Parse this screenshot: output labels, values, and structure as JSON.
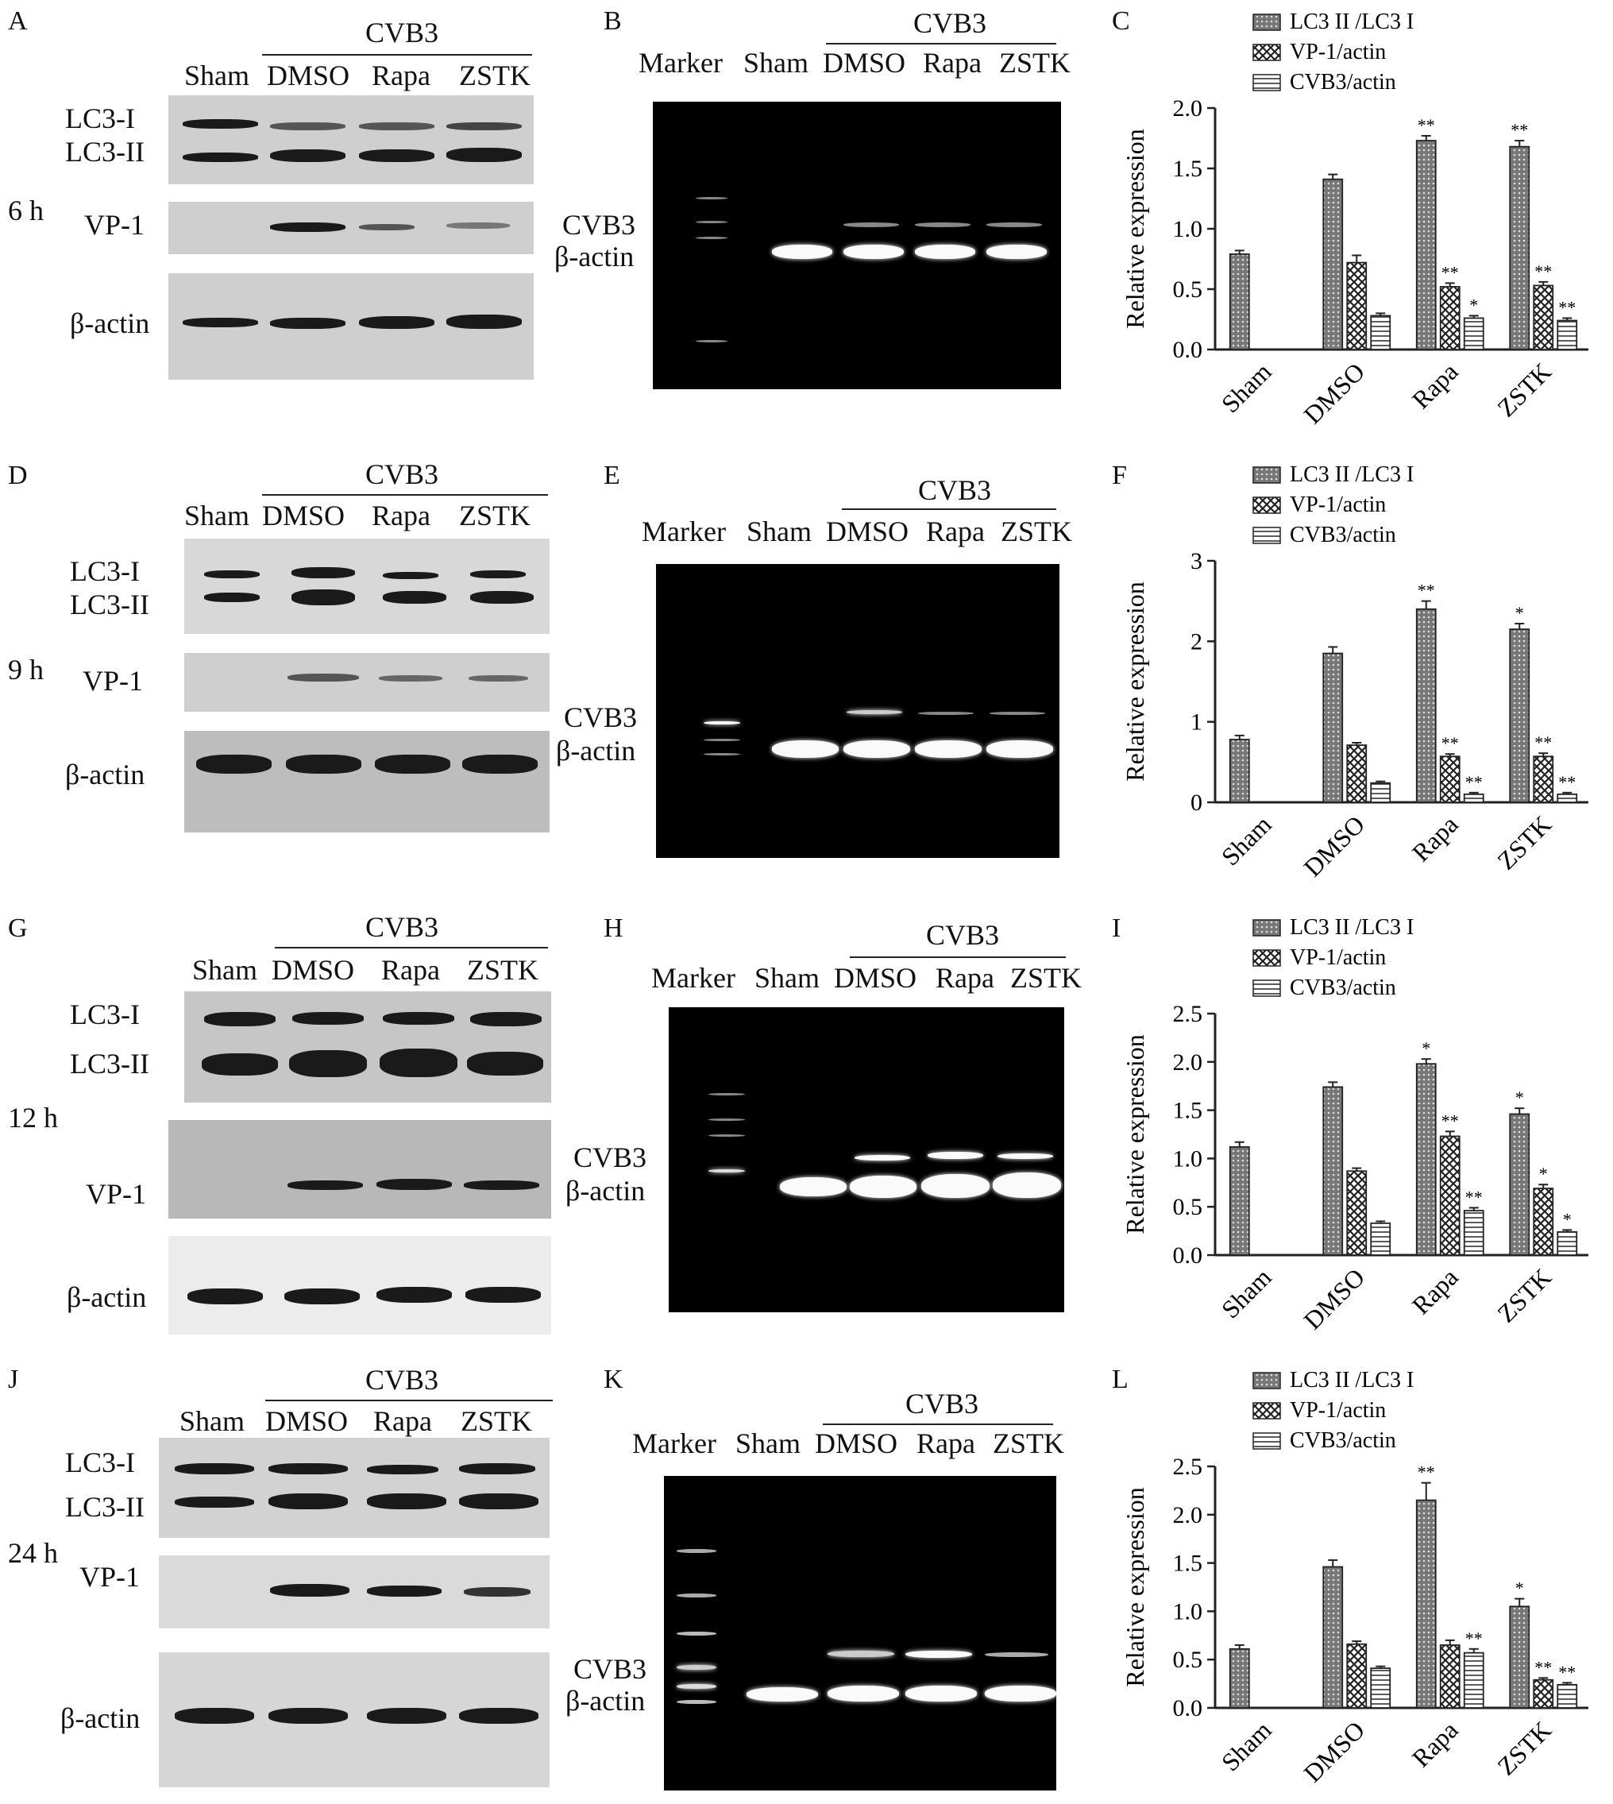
{
  "rows": [
    {
      "time": "6 h",
      "blot": {
        "letter": "A",
        "group": "CVB3",
        "lanes": [
          "Sham",
          "DMSO",
          "Rapa",
          "ZSTK"
        ],
        "rows": [
          "LC3-I",
          "LC3-II",
          "VP-1",
          "β-actin"
        ]
      },
      "gel": {
        "letter": "B",
        "group": "CVB3",
        "lanes": [
          "Marker",
          "Sham",
          "DMSO",
          "Rapa",
          "ZSTK"
        ],
        "bands": [
          "CVB3",
          "β-actin"
        ]
      }
    },
    {
      "time": "9 h",
      "blot": {
        "letter": "D",
        "group": "CVB3",
        "lanes": [
          "Sham",
          "DMSO",
          "Rapa",
          "ZSTK"
        ],
        "rows": [
          "LC3-I",
          "LC3-II",
          "VP-1",
          "β-actin"
        ]
      },
      "gel": {
        "letter": "E",
        "group": "CVB3",
        "lanes": [
          "Marker",
          "Sham",
          "DMSO",
          "Rapa",
          "ZSTK"
        ],
        "bands": [
          "CVB3",
          "β-actin"
        ]
      }
    },
    {
      "time": "12 h",
      "blot": {
        "letter": "G",
        "group": "CVB3",
        "lanes": [
          "Sham",
          "DMSO",
          "Rapa",
          "ZSTK"
        ],
        "rows": [
          "LC3-I",
          "LC3-II",
          "VP-1",
          "β-actin"
        ]
      },
      "gel": {
        "letter": "H",
        "group": "CVB3",
        "lanes": [
          "Marker",
          "Sham",
          "DMSO",
          "Rapa",
          "ZSTK"
        ],
        "bands": [
          "CVB3",
          "β-actin"
        ]
      }
    },
    {
      "time": "24 h",
      "blot": {
        "letter": "J",
        "group": "CVB3",
        "lanes": [
          "Sham",
          "DMSO",
          "Rapa",
          "ZSTK"
        ],
        "rows": [
          "LC3-I",
          "LC3-II",
          "VP-1",
          "β-actin"
        ]
      },
      "gel": {
        "letter": "K",
        "group": "CVB3",
        "lanes": [
          "Marker",
          "Sham",
          "DMSO",
          "Rapa",
          "ZSTK"
        ],
        "bands": [
          "CVB3",
          "β-actin"
        ]
      }
    }
  ],
  "chart_data": [
    {
      "panel": "C",
      "type": "bar",
      "categories": [
        "Sham",
        "DMSO",
        "Rapa",
        "ZSTK"
      ],
      "ylabel": "Relative expression",
      "ylim": [
        0,
        2.0
      ],
      "yticks": [
        "0.0",
        "0.5",
        "1.0",
        "1.5",
        "2.0"
      ],
      "series": [
        {
          "name": "LC3 II  /LC3 I",
          "values": [
            0.79,
            1.41,
            1.73,
            1.68
          ],
          "errors": [
            0.03,
            0.04,
            0.04,
            0.05
          ],
          "marks": [
            "",
            "",
            "**",
            "**"
          ]
        },
        {
          "name": "VP-1/actin",
          "values": [
            0,
            0.72,
            0.52,
            0.53
          ],
          "errors": [
            0,
            0.06,
            0.03,
            0.03
          ],
          "marks": [
            "",
            "",
            "**",
            "**"
          ]
        },
        {
          "name": "CVB3/actin",
          "values": [
            0,
            0.28,
            0.26,
            0.24
          ],
          "errors": [
            0,
            0.02,
            0.02,
            0.02
          ],
          "marks": [
            "",
            "",
            "*",
            "**"
          ]
        }
      ]
    },
    {
      "panel": "F",
      "type": "bar",
      "categories": [
        "Sham",
        "DMSO",
        "Rapa",
        "ZSTK"
      ],
      "ylabel": "Relative expression",
      "ylim": [
        0,
        3
      ],
      "yticks": [
        "0",
        "1",
        "2",
        "3"
      ],
      "series": [
        {
          "name": "LC3 II  /LC3 I",
          "values": [
            0.78,
            1.85,
            2.4,
            2.15
          ],
          "errors": [
            0.05,
            0.08,
            0.1,
            0.07
          ],
          "marks": [
            "",
            "",
            "**",
            "*"
          ]
        },
        {
          "name": "VP-1/actin",
          "values": [
            0,
            0.71,
            0.57,
            0.57
          ],
          "errors": [
            0,
            0.03,
            0.03,
            0.04
          ],
          "marks": [
            "",
            "",
            "**",
            "**"
          ]
        },
        {
          "name": "CVB3/actin",
          "values": [
            0,
            0.24,
            0.1,
            0.1
          ],
          "errors": [
            0,
            0.02,
            0.02,
            0.02
          ],
          "marks": [
            "",
            "",
            "**",
            "**"
          ]
        }
      ]
    },
    {
      "panel": "I",
      "type": "bar",
      "categories": [
        "Sham",
        "DMSO",
        "Rapa",
        "ZSTK"
      ],
      "ylabel": "Relative expression",
      "ylim": [
        0,
        2.5
      ],
      "yticks": [
        "0.0",
        "0.5",
        "1.0",
        "1.5",
        "2.0",
        "2.5"
      ],
      "series": [
        {
          "name": "LC3 II  /LC3 I",
          "values": [
            1.12,
            1.74,
            1.98,
            1.46
          ],
          "errors": [
            0.05,
            0.05,
            0.05,
            0.06
          ],
          "marks": [
            "",
            "",
            "*",
            "*"
          ]
        },
        {
          "name": "VP-1/actin",
          "values": [
            0,
            0.87,
            1.23,
            0.69
          ],
          "errors": [
            0,
            0.03,
            0.05,
            0.04
          ],
          "marks": [
            "",
            "",
            "**",
            "*"
          ]
        },
        {
          "name": "CVB3/actin",
          "values": [
            0,
            0.33,
            0.46,
            0.24
          ],
          "errors": [
            0,
            0.02,
            0.03,
            0.02
          ],
          "marks": [
            "",
            "",
            "**",
            "*"
          ]
        }
      ]
    },
    {
      "panel": "L",
      "type": "bar",
      "categories": [
        "Sham",
        "DMSO",
        "Rapa",
        "ZSTK"
      ],
      "ylabel": "Relative expression",
      "ylim": [
        0,
        2.5
      ],
      "yticks": [
        "0.0",
        "0.5",
        "1.0",
        "1.5",
        "2.0",
        "2.5"
      ],
      "series": [
        {
          "name": "LC3 II  /LC3 I",
          "values": [
            0.61,
            1.46,
            2.15,
            1.05
          ],
          "errors": [
            0.04,
            0.07,
            0.18,
            0.08
          ],
          "marks": [
            "",
            "",
            "**",
            "*"
          ]
        },
        {
          "name": "VP-1/actin",
          "values": [
            0,
            0.66,
            0.65,
            0.29
          ],
          "errors": [
            0,
            0.03,
            0.05,
            0.02
          ],
          "marks": [
            "",
            "",
            "",
            "**"
          ]
        },
        {
          "name": "CVB3/actin",
          "values": [
            0,
            0.41,
            0.57,
            0.24
          ],
          "errors": [
            0,
            0.02,
            0.04,
            0.02
          ],
          "marks": [
            "",
            "",
            "**",
            "**"
          ]
        }
      ]
    }
  ]
}
